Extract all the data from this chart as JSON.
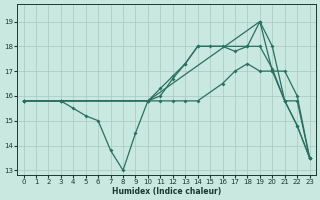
{
  "bg_color": "#c8e8e0",
  "grid_color": "#a8c8c0",
  "line_color": "#2a7060",
  "xlabel": "Humidex (Indice chaleur)",
  "xlim": [
    -0.5,
    23.5
  ],
  "ylim": [
    12.8,
    19.7
  ],
  "xticks": [
    0,
    1,
    2,
    3,
    4,
    5,
    6,
    7,
    8,
    9,
    10,
    11,
    12,
    13,
    14,
    15,
    16,
    17,
    18,
    19,
    20,
    21,
    22,
    23
  ],
  "yticks": [
    13,
    14,
    15,
    16,
    17,
    18,
    19
  ],
  "series": [
    {
      "x": [
        0,
        3,
        10,
        11,
        12,
        13,
        14,
        18,
        19,
        20,
        21,
        22,
        23
      ],
      "y": [
        15.8,
        15.8,
        15.8,
        16.3,
        16.8,
        17.3,
        18.0,
        18.0,
        18.0,
        17.1,
        15.8,
        15.8,
        13.5
      ]
    },
    {
      "x": [
        0,
        3,
        10,
        11,
        12,
        13,
        14,
        16,
        17,
        18,
        19,
        20,
        21,
        22,
        23
      ],
      "y": [
        15.8,
        15.8,
        15.8,
        15.8,
        15.8,
        15.8,
        15.8,
        16.5,
        17.0,
        17.3,
        17.0,
        17.0,
        17.0,
        16.0,
        13.5
      ]
    },
    {
      "x": [
        0,
        3,
        10,
        11,
        12,
        13,
        14,
        15,
        16,
        17,
        18,
        19,
        20,
        21,
        22,
        23
      ],
      "y": [
        15.8,
        15.8,
        15.8,
        16.0,
        16.7,
        17.3,
        18.0,
        18.0,
        18.0,
        17.8,
        18.0,
        19.0,
        18.0,
        15.8,
        14.8,
        13.5
      ]
    },
    {
      "x": [
        0,
        3,
        4,
        5,
        6,
        7,
        8,
        9,
        10,
        19,
        20,
        21,
        22,
        23
      ],
      "y": [
        15.8,
        15.8,
        15.5,
        15.2,
        15.0,
        13.8,
        13.0,
        14.5,
        15.8,
        19.0,
        17.0,
        15.8,
        14.8,
        13.5
      ]
    }
  ]
}
